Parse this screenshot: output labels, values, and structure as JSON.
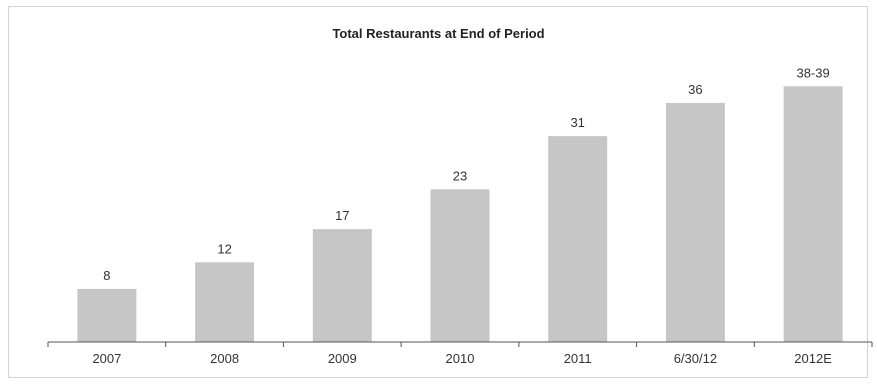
{
  "chart_data": {
    "type": "bar",
    "title": "Total Restaurants at End of Period",
    "categories": [
      "2007",
      "2008",
      "2009",
      "2010",
      "2011",
      "6/30/12",
      "2012E"
    ],
    "values": [
      8,
      12,
      17,
      23,
      31,
      36,
      38.5
    ],
    "data_labels": [
      "8",
      "12",
      "17",
      "23",
      "31",
      "36",
      "38-39"
    ],
    "xlabel": "",
    "ylabel": "",
    "ylim": [
      0,
      40
    ],
    "grid": false,
    "legend": "none",
    "colors": {
      "bar": "#c6c6c6",
      "axis": "#555555",
      "text": "#333333"
    }
  }
}
